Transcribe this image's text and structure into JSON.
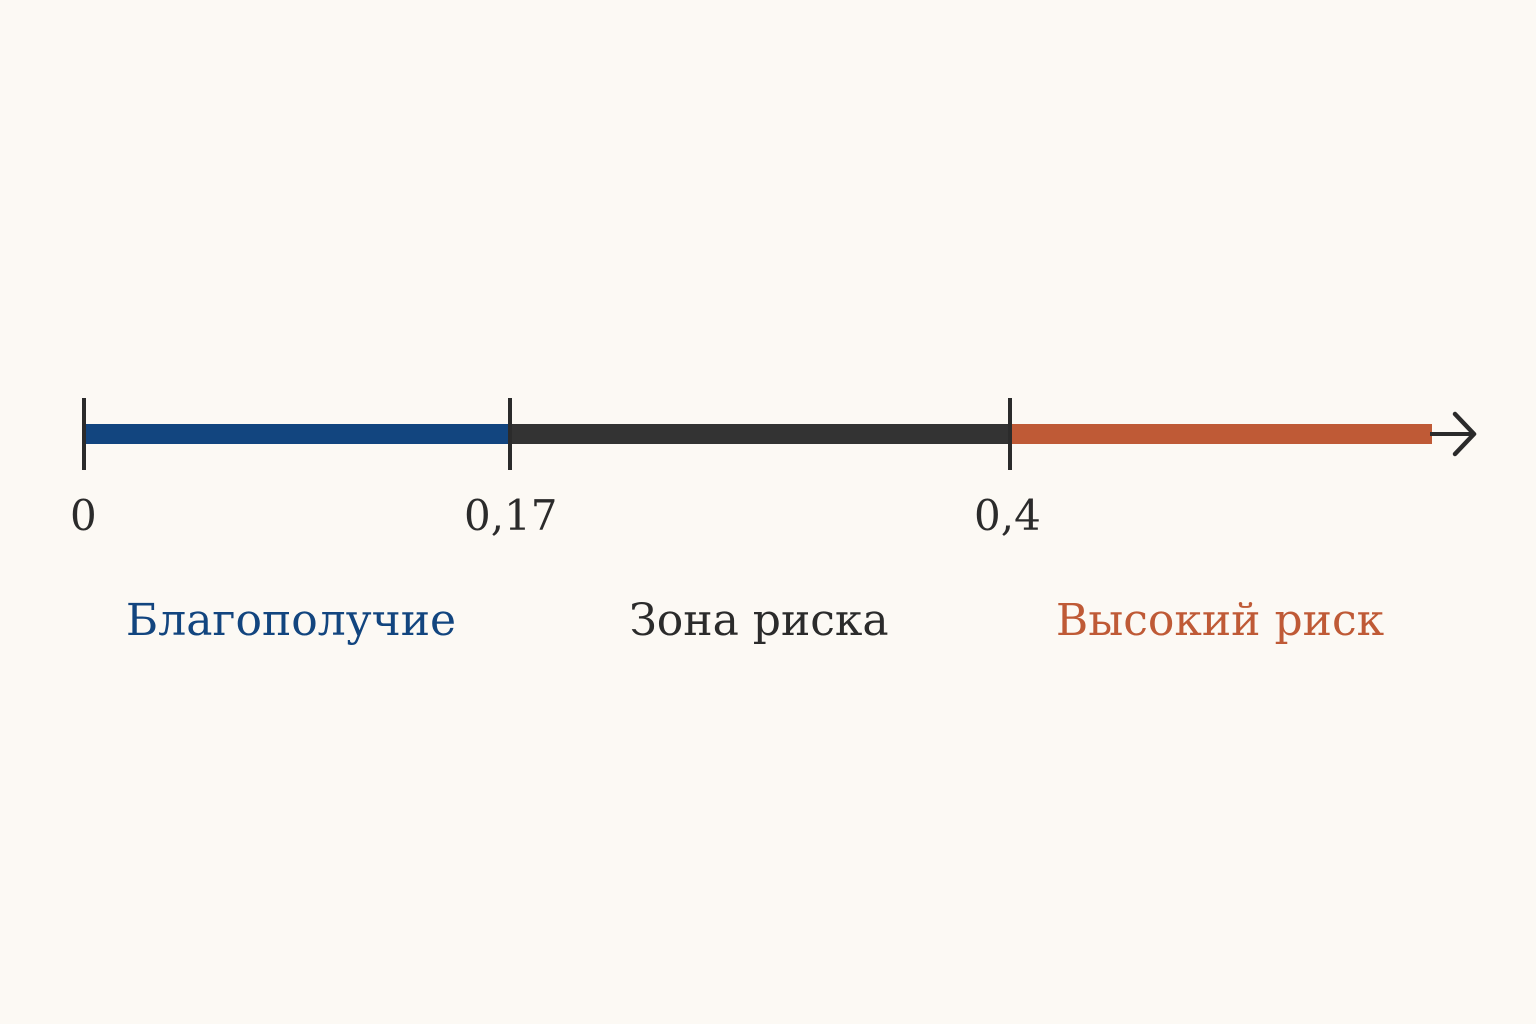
{
  "axis": {
    "ticks": [
      {
        "value": 0,
        "label": "0"
      },
      {
        "value": 0.17,
        "label": "0,17"
      },
      {
        "value": 0.4,
        "label": "0,4"
      }
    ]
  },
  "zones": [
    {
      "label": "Благополучие",
      "from": 0,
      "to": 0.17,
      "color": "#12457f"
    },
    {
      "label": "Зона риска",
      "from": 0.17,
      "to": 0.4,
      "color": "#333333"
    },
    {
      "label": "Высокий риск",
      "from": 0.4,
      "to": null,
      "color": "#bf5a36"
    }
  ],
  "colors": {
    "background": "#fcf9f4",
    "axis_ink": "#2b2b2b"
  }
}
